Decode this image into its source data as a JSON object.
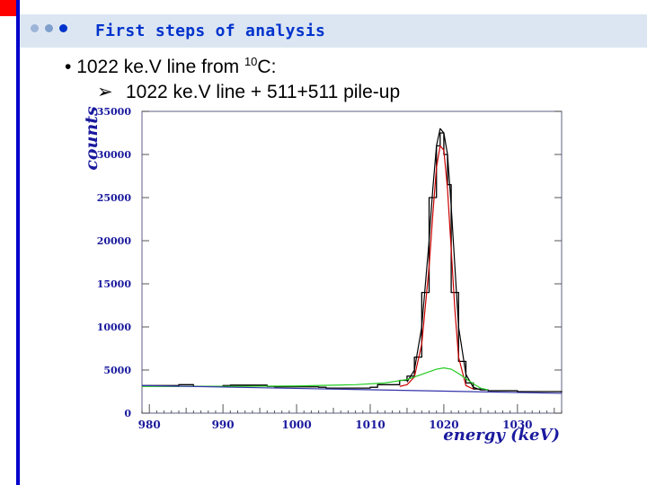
{
  "slide": {
    "title": "First steps of analysis",
    "bullet_main": "1022 ke.V line from ",
    "bullet_main_sup": "10",
    "bullet_main_suffix": "C:",
    "bullet_sub": "1022 ke.V line + 511+511 pile-up",
    "colors": {
      "corner": "#ff0000",
      "left_rule": "#0000cc",
      "title_band": "#dce6f2",
      "title_text": "#0033cc",
      "axis_text": "#1a1a9e"
    },
    "dot_colors": [
      "#9cb4d8",
      "#7f9fcc",
      "#0033cc"
    ]
  },
  "chart_data": {
    "type": "line",
    "title": "",
    "xlabel": "energy (keV)",
    "ylabel": "counts",
    "xlim": [
      979,
      1036
    ],
    "ylim": [
      0,
      35000
    ],
    "x_ticks": [
      980,
      990,
      1000,
      1010,
      1020,
      1030
    ],
    "y_ticks": [
      0,
      5000,
      10000,
      15000,
      20000,
      25000,
      30000,
      35000
    ],
    "grid": false,
    "legend": "none",
    "series": [
      {
        "style": "step",
        "color": "#000000",
        "x": [
          979,
          980,
          984,
          986,
          990,
          991,
          996,
          997,
          1003,
          1004,
          1010,
          1011,
          1014,
          1015,
          1016,
          1017,
          1018,
          1019,
          1019.5,
          1020,
          1020.5,
          1021,
          1022,
          1023,
          1024,
          1025,
          1026,
          1030,
          1036
        ],
        "y": [
          3200,
          3200,
          3300,
          3100,
          3200,
          3250,
          3100,
          3050,
          3000,
          2900,
          3000,
          3300,
          3800,
          4300,
          6500,
          14000,
          25000,
          31000,
          32500,
          30000,
          26500,
          14000,
          6000,
          3500,
          2800,
          2700,
          2600,
          2500,
          2400
        ]
      },
      {
        "style": "smooth",
        "color": "#000000",
        "x": [
          1015,
          1016,
          1017,
          1018,
          1018.5,
          1019,
          1019.5,
          1020,
          1020.5,
          1021,
          1021.5,
          1022,
          1023,
          1024,
          1025
        ],
        "y": [
          3600,
          5000,
          10000,
          20000,
          26000,
          31000,
          33000,
          32500,
          30000,
          24000,
          17000,
          10000,
          4500,
          3000,
          2700
        ]
      },
      {
        "style": "smooth",
        "color": "#cc0000",
        "x": [
          1014,
          1015,
          1016,
          1017,
          1018,
          1018.5,
          1019,
          1019.5,
          1020,
          1020.5,
          1021,
          1021.5,
          1022,
          1023,
          1024
        ],
        "y": [
          3100,
          3300,
          4200,
          8000,
          17000,
          23000,
          28500,
          31000,
          30500,
          26000,
          19000,
          12000,
          6500,
          3200,
          2800
        ]
      },
      {
        "style": "smooth",
        "color": "#22cc22",
        "x": [
          979,
          990,
          1000,
          1008,
          1012,
          1015,
          1017,
          1019,
          1020,
          1021,
          1022,
          1024,
          1025,
          1026
        ],
        "y": [
          3100,
          3100,
          3150,
          3300,
          3500,
          3900,
          4500,
          5100,
          5250,
          5100,
          4600,
          3400,
          2900,
          2700
        ]
      },
      {
        "style": "smooth",
        "color": "#3333aa",
        "x": [
          979,
          1036
        ],
        "y": [
          3200,
          2300
        ]
      }
    ]
  }
}
